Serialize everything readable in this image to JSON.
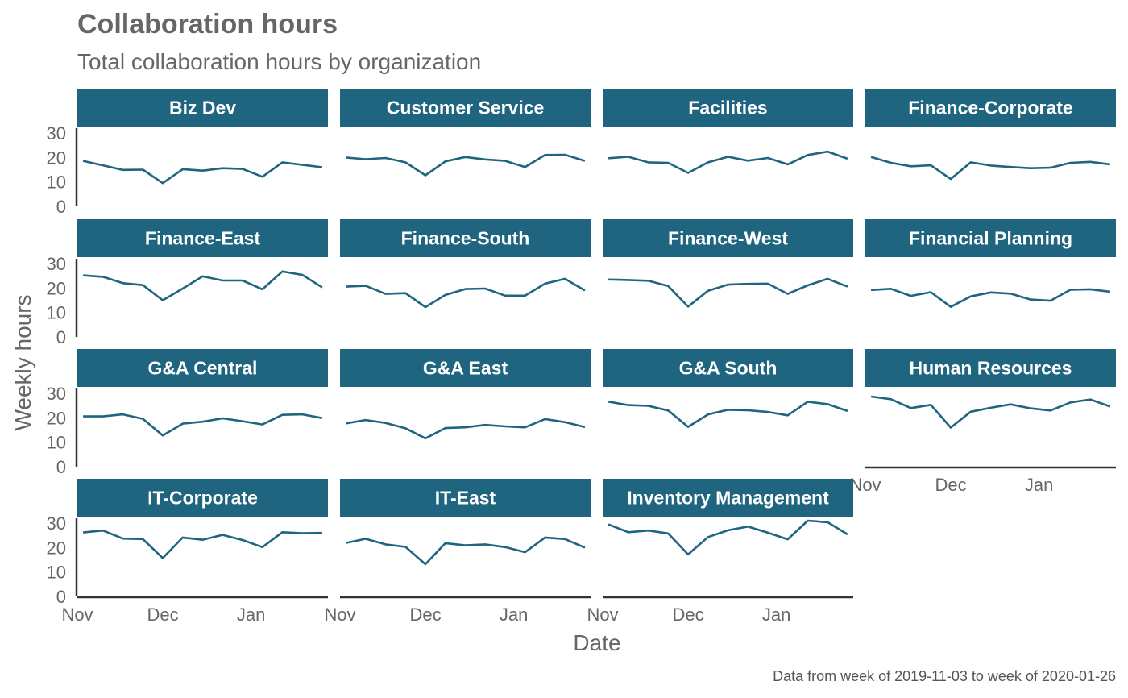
{
  "chart_data": {
    "type": "line",
    "title": "Collaboration hours",
    "subtitle": "Total collaboration hours by organization",
    "xlabel": "Date",
    "ylabel": "Weekly hours",
    "caption": "Data from week of 2019-11-03 to week of 2020-01-26",
    "x": [
      "2019-11-03",
      "2019-11-10",
      "2019-11-17",
      "2019-11-24",
      "2019-12-01",
      "2019-12-08",
      "2019-12-15",
      "2019-12-22",
      "2019-12-29",
      "2020-01-05",
      "2020-01-12",
      "2020-01-19",
      "2020-01-26"
    ],
    "x_ticks": [
      {
        "date": "2019-11-01",
        "label": "Nov"
      },
      {
        "date": "2019-12-01",
        "label": "Dec"
      },
      {
        "date": "2020-01-01",
        "label": "Jan"
      }
    ],
    "y_ticks": [
      0,
      10,
      20,
      30
    ],
    "ylim": [
      0,
      32
    ],
    "line_color": "#1f657f",
    "strip_color": "#1f657f",
    "grid": false,
    "series": [
      {
        "name": "Biz Dev",
        "values": [
          18.6,
          16.8,
          14.9,
          15.0,
          9.5,
          15.2,
          14.6,
          15.6,
          15.3,
          12.1,
          18.0,
          17.0,
          16.0
        ]
      },
      {
        "name": "Customer Service",
        "values": [
          20.0,
          19.3,
          19.8,
          18.0,
          12.7,
          18.4,
          20.2,
          19.2,
          18.6,
          16.1,
          21.0,
          21.1,
          18.6
        ]
      },
      {
        "name": "Facilities",
        "values": [
          19.7,
          20.3,
          18.0,
          17.8,
          13.7,
          18.0,
          20.3,
          18.7,
          19.8,
          17.2,
          21.0,
          22.4,
          19.5
        ]
      },
      {
        "name": "Finance-Corporate",
        "values": [
          20.2,
          17.8,
          16.4,
          16.8,
          11.2,
          18.0,
          16.7,
          16.1,
          15.6,
          15.8,
          17.8,
          18.2,
          17.2
        ]
      },
      {
        "name": "Finance-East",
        "values": [
          25.2,
          24.6,
          22.0,
          21.2,
          15.0,
          19.8,
          24.8,
          23.1,
          23.1,
          19.5,
          26.8,
          25.4,
          20.3
        ]
      },
      {
        "name": "Finance-South",
        "values": [
          20.6,
          20.9,
          17.6,
          17.9,
          12.2,
          17.2,
          19.6,
          19.8,
          16.9,
          16.9,
          21.8,
          23.8,
          19.0
        ]
      },
      {
        "name": "Finance-West",
        "values": [
          23.5,
          23.3,
          23.0,
          20.8,
          12.4,
          18.9,
          21.4,
          21.7,
          21.8,
          17.6,
          21.1,
          23.8,
          20.6
        ]
      },
      {
        "name": "Financial Planning",
        "values": [
          19.2,
          19.7,
          16.8,
          18.3,
          12.3,
          16.6,
          18.2,
          17.7,
          15.3,
          14.8,
          19.3,
          19.5,
          18.5
        ]
      },
      {
        "name": "G&A Central",
        "values": [
          20.6,
          20.6,
          21.4,
          19.6,
          12.8,
          17.6,
          18.4,
          19.8,
          18.6,
          17.3,
          21.2,
          21.4,
          19.9
        ]
      },
      {
        "name": "G&A East",
        "values": [
          17.7,
          19.1,
          17.9,
          15.7,
          11.6,
          15.8,
          16.1,
          17.1,
          16.5,
          16.1,
          19.5,
          18.2,
          16.2
        ]
      },
      {
        "name": "G&A South",
        "values": [
          26.6,
          25.2,
          24.9,
          23.0,
          16.3,
          21.4,
          23.3,
          23.1,
          22.4,
          21.0,
          26.6,
          25.6,
          22.8
        ]
      },
      {
        "name": "Human Resources",
        "values": [
          28.7,
          27.6,
          24.0,
          25.3,
          16.0,
          22.5,
          24.1,
          25.5,
          23.9,
          23.0,
          26.3,
          27.5,
          24.6
        ]
      },
      {
        "name": "IT-Corporate",
        "values": [
          26.2,
          27.0,
          23.7,
          23.5,
          15.7,
          24.1,
          23.2,
          25.2,
          23.1,
          20.2,
          26.3,
          25.9,
          26.0
        ]
      },
      {
        "name": "IT-East",
        "values": [
          21.9,
          23.6,
          21.3,
          20.3,
          13.2,
          21.8,
          20.9,
          21.3,
          20.2,
          18.1,
          24.1,
          23.5,
          20.0
        ]
      },
      {
        "name": "Inventory Management",
        "values": [
          29.5,
          26.3,
          27.0,
          25.8,
          17.2,
          24.3,
          27.1,
          28.6,
          26.1,
          23.4,
          31.0,
          30.4,
          25.4
        ]
      }
    ]
  }
}
